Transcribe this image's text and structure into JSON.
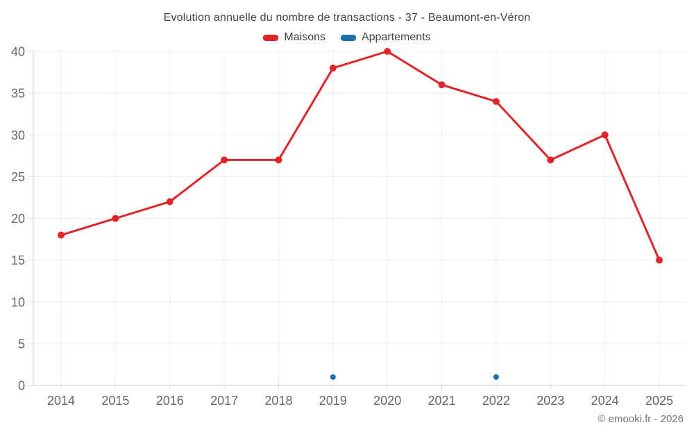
{
  "chart_data": {
    "type": "line",
    "title": "Evolution annuelle du nombre de transactions - 37 - Beaumont-en-Véron",
    "copyright": "© emooki.fr - 2026",
    "categories": [
      "2014",
      "2015",
      "2016",
      "2017",
      "2018",
      "2019",
      "2020",
      "2021",
      "2022",
      "2023",
      "2024",
      "2025"
    ],
    "series": [
      {
        "name": "Maisons",
        "color": "#e02429",
        "line": true,
        "marker": "circle",
        "values": [
          18,
          20,
          22,
          27,
          27,
          38,
          40,
          36,
          34,
          27,
          30,
          15
        ]
      },
      {
        "name": "Appartements",
        "color": "#1b72a8",
        "line": false,
        "marker": "circle",
        "values": [
          null,
          null,
          null,
          null,
          null,
          1,
          null,
          null,
          1,
          null,
          null,
          null
        ]
      }
    ],
    "xlabel": "",
    "ylabel": "",
    "ylim": [
      0,
      40
    ],
    "yticks": [
      0,
      5,
      10,
      15,
      20,
      25,
      30,
      35,
      40
    ],
    "grid": true,
    "legend_position": "top",
    "colors": {
      "grid": "#ebebeb",
      "axis": "#cfcfcf",
      "tick": "#d9d9d9",
      "tick_label": "#666666",
      "title_text": "#424242",
      "copyright_text": "#757575"
    }
  }
}
